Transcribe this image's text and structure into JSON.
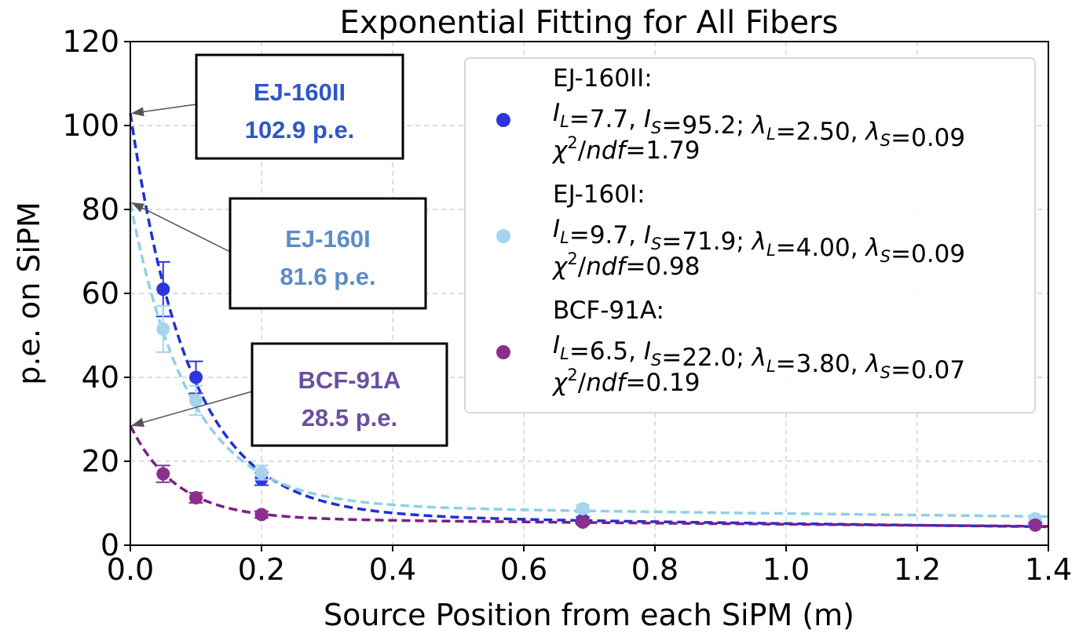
{
  "chart_data": {
    "type": "scatter",
    "title": "Exponential Fitting for All Fibers",
    "xlabel": "Source Position from each SiPM (m)",
    "ylabel": "p.e. on SiPM",
    "xlim": [
      0.0,
      1.4
    ],
    "ylim": [
      0,
      120
    ],
    "xticks": [
      "0.0",
      "0.2",
      "0.4",
      "0.6",
      "0.8",
      "1.0",
      "1.2",
      "1.4"
    ],
    "xtick_values": [
      0.0,
      0.2,
      0.4,
      0.6,
      0.8,
      1.0,
      1.2,
      1.4
    ],
    "yticks": [
      "0",
      "20",
      "40",
      "60",
      "80",
      "100",
      "120"
    ],
    "ytick_values": [
      0,
      20,
      40,
      60,
      80,
      100,
      120
    ],
    "grid": true,
    "legend_position": "top-right",
    "fit_model": "I_L*exp(-x/lambda_L) + I_S*exp(-x/lambda_S)",
    "series": [
      {
        "name": "EJ-160II",
        "color": "#2b35e0",
        "fit_color": "#1f2fd6",
        "x": [
          0.05,
          0.1,
          0.2,
          0.69,
          1.38
        ],
        "y": [
          61.0,
          40.0,
          15.8,
          6.0,
          5.0
        ],
        "yerr": [
          6.5,
          3.8,
          1.5,
          0.7,
          0.5
        ],
        "fit": {
          "I_L": 7.7,
          "I_S": 95.2,
          "lambda_L": 2.5,
          "lambda_S": 0.09
        },
        "legend": {
          "name": "EJ-160II:",
          "line2": "I_L=7.7, I_S=95.2; λ_L=2.50, λ_S=0.09",
          "line3": "χ²/ndf=1.79",
          "I_L": "7.7",
          "I_S": "95.2",
          "lambda_L": "2.50",
          "lambda_S": "0.09",
          "chi2ndf": "1.79"
        }
      },
      {
        "name": "EJ-160I",
        "color": "#a6d4ec",
        "fit_color": "#90cfe8",
        "x": [
          0.05,
          0.1,
          0.2,
          0.69,
          1.38
        ],
        "y": [
          51.5,
          34.5,
          17.3,
          8.7,
          6.3
        ],
        "yerr": [
          5.5,
          3.5,
          1.7,
          0.9,
          0.6
        ],
        "fit": {
          "I_L": 9.7,
          "I_S": 71.9,
          "lambda_L": 4.0,
          "lambda_S": 0.09
        },
        "legend": {
          "name": "EJ-160I:",
          "line2": "I_L=9.7, I_S=71.9; λ_L=4.00, λ_S=0.09",
          "line3": "χ²/ndf=0.98",
          "I_L": "9.7",
          "I_S": "71.9",
          "lambda_L": "4.00",
          "lambda_S": "0.09",
          "chi2ndf": "0.98"
        }
      },
      {
        "name": "BCF-91A",
        "color": "#8a2f8e",
        "fit_color": "#7b1f87",
        "x": [
          0.05,
          0.1,
          0.2,
          0.69,
          1.38
        ],
        "y": [
          17.0,
          11.3,
          7.3,
          5.5,
          4.8
        ],
        "yerr": [
          2.0,
          1.2,
          0.8,
          0.6,
          0.5
        ],
        "fit": {
          "I_L": 6.5,
          "I_S": 22.0,
          "lambda_L": 3.8,
          "lambda_S": 0.07
        },
        "legend": {
          "name": "BCF-91A:",
          "line2": "I_L=6.5, I_S=22.0; λ_L=3.80, λ_S=0.07",
          "line3": "χ²/ndf=0.19",
          "I_L": "6.5",
          "I_S": "22.0",
          "lambda_L": "3.80",
          "lambda_S": "0.07",
          "chi2ndf": "0.19"
        }
      }
    ],
    "annotations": [
      {
        "name": "EJ-160II",
        "value_text": "102.9 p.e.",
        "value": 102.9,
        "color": "#2f56c9"
      },
      {
        "name": "EJ-160I",
        "value_text": "81.6 p.e.",
        "value": 81.6,
        "color": "#5b8dc6"
      },
      {
        "name": "BCF-91A",
        "value_text": "28.5 p.e.",
        "value": 28.5,
        "color": "#6b4fa0"
      }
    ]
  }
}
